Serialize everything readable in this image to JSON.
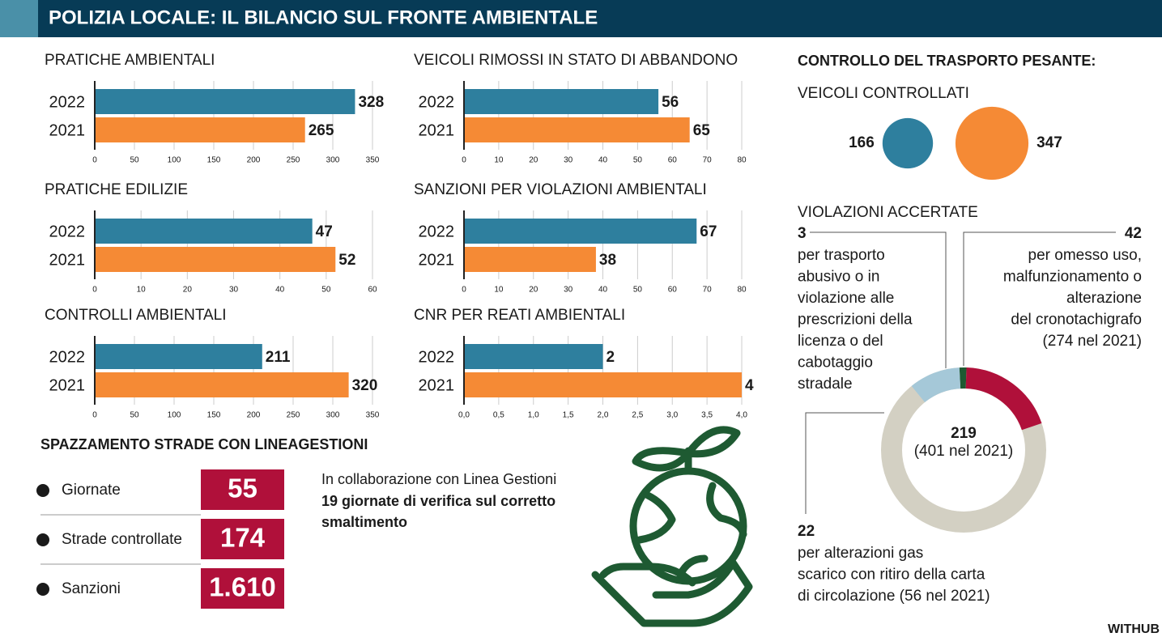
{
  "title": "POLIZIA LOCALE: IL BILANCIO SUL FRONTE AMBIENTALE",
  "chart_data": [
    {
      "type": "hbar",
      "title": "PRATICHE AMBIENTALI",
      "categories": [
        "2022",
        "2021"
      ],
      "values": [
        328,
        265
      ],
      "colors": [
        "#2e7f9e",
        "#f58a35"
      ],
      "xlim": [
        0,
        350
      ],
      "xticks": [
        0,
        50,
        100,
        150,
        200,
        250,
        300,
        350
      ],
      "grid": true
    },
    {
      "type": "hbar",
      "title": "VEICOLI RIMOSSI IN STATO DI ABBANDONO",
      "categories": [
        "2022",
        "2021"
      ],
      "values": [
        56,
        65
      ],
      "colors": [
        "#2e7f9e",
        "#f58a35"
      ],
      "xlim": [
        0,
        80
      ],
      "xticks": [
        0,
        10,
        20,
        30,
        40,
        50,
        60,
        70,
        80
      ],
      "grid": true
    },
    {
      "type": "hbar",
      "title": "PRATICHE EDILIZIE",
      "categories": [
        "2022",
        "2021"
      ],
      "values": [
        47,
        52
      ],
      "colors": [
        "#2e7f9e",
        "#f58a35"
      ],
      "xlim": [
        0,
        60
      ],
      "xticks": [
        0,
        10,
        20,
        30,
        40,
        50,
        60
      ],
      "grid": true
    },
    {
      "type": "hbar",
      "title": "SANZIONI PER VIOLAZIONI AMBIENTALI",
      "categories": [
        "2022",
        "2021"
      ],
      "values": [
        67,
        38
      ],
      "colors": [
        "#2e7f9e",
        "#f58a35"
      ],
      "xlim": [
        0,
        80
      ],
      "xticks": [
        0,
        10,
        20,
        30,
        40,
        50,
        60,
        70,
        80
      ],
      "grid": true
    },
    {
      "type": "hbar",
      "title": "CONTROLLI AMBIENTALI",
      "categories": [
        "2022",
        "2021"
      ],
      "values": [
        211,
        320
      ],
      "colors": [
        "#2e7f9e",
        "#f58a35"
      ],
      "xlim": [
        0,
        350
      ],
      "xticks": [
        0,
        50,
        100,
        150,
        200,
        250,
        300,
        350
      ],
      "grid": true
    },
    {
      "type": "hbar",
      "title": "CNR PER REATI AMBIENTALI",
      "categories": [
        "2022",
        "2021"
      ],
      "values": [
        2,
        4
      ],
      "colors": [
        "#2e7f9e",
        "#f58a35"
      ],
      "xlim": [
        0,
        4
      ],
      "xticks": [
        {
          "value": 0,
          "label": "0,0"
        },
        {
          "value": 0.5,
          "label": "0,5"
        },
        {
          "value": 1,
          "label": "1,0"
        },
        {
          "value": 1.5,
          "label": "1,5"
        },
        {
          "value": 2,
          "label": "2,0"
        },
        {
          "value": 2.5,
          "label": "2,5"
        },
        {
          "value": 3,
          "label": "3,0"
        },
        {
          "value": 3.5,
          "label": "3,5"
        },
        {
          "value": 4,
          "label": "4,0"
        }
      ],
      "grid": true
    },
    {
      "type": "bubble",
      "title": "CONTROLLO DEL TRASPORTO PESANTE:",
      "subtitle": "VEICOLI CONTROLLATI",
      "values": [
        166,
        347
      ],
      "colors": [
        "#2e7f9e",
        "#f58a35"
      ]
    },
    {
      "type": "donut",
      "title": "VIOLAZIONI ACCERTATE",
      "total": 219,
      "total_note": "(401 nel 2021)",
      "values": [
        3,
        42,
        22
      ],
      "colors": [
        "#1e5a32",
        "#b0103a",
        "#a5c8d8"
      ],
      "ring_color": "#d3d0c3",
      "descriptions": [
        [
          "per trasporto",
          "abusivo o in",
          "violazione alle",
          "prescrizioni della",
          "licenza o del",
          "cabotaggio",
          "stradale"
        ],
        [
          "per omesso uso,",
          "malfunzionamento o",
          "alterazione",
          "del cronotachigrafo",
          "(274 nel 2021)"
        ],
        [
          "per alterazioni gas",
          "scarico con ritiro della carta",
          "di circolazione (56 nel 2021)"
        ]
      ]
    }
  ],
  "sweeping": {
    "title": "SPAZZAMENTO STRADE CON LINEAGESTIONI",
    "rows": [
      {
        "label": "Giornate",
        "value": "55"
      },
      {
        "label": "Strade controllate",
        "value": "174"
      },
      {
        "label": "Sanzioni",
        "value": "1.610"
      }
    ],
    "note": "In collaborazione con Linea Gestioni",
    "note_bold": [
      "19 giornate di verifica sul corretto",
      "smaltimento"
    ]
  },
  "source": "WITHUB"
}
